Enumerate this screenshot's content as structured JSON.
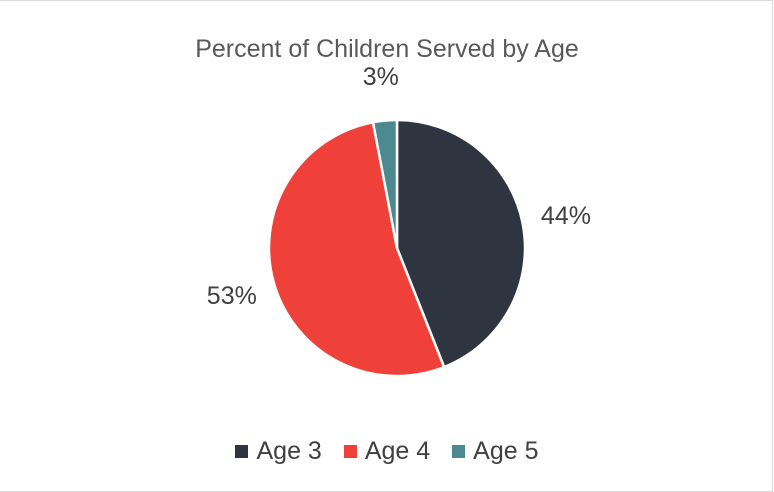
{
  "chart_data": {
    "type": "pie",
    "title": "Percent of Children Served by Age",
    "categories": [
      "Age 3",
      "Age 4",
      "Age 5"
    ],
    "values": [
      44,
      53,
      3
    ],
    "data_labels": [
      "44%",
      "53%",
      "3%"
    ],
    "colors": [
      "#2f3441",
      "#f0403a",
      "#4d8a90"
    ],
    "legend_position": "bottom",
    "start_angle_deg": 0,
    "direction": "clockwise"
  }
}
